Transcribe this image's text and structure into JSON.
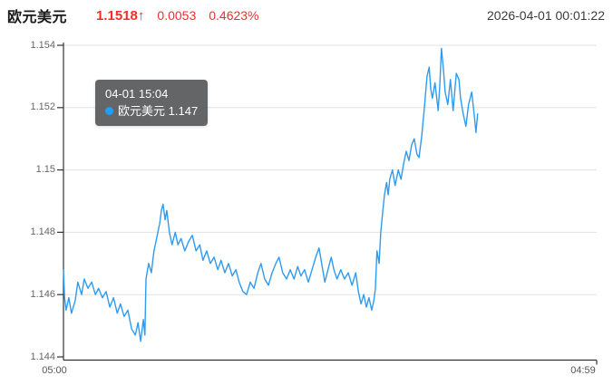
{
  "header": {
    "title": "欧元美元",
    "price": "1.1518",
    "arrow": "↑",
    "change": "0.0053",
    "change_pct": "0.4623%",
    "timestamp": "2026-04-01 00:01:22",
    "up_color": "#f42c2c"
  },
  "tooltip": {
    "time": "04-01 15:04",
    "series": "欧元美元",
    "value": "1.147",
    "dot_color": "#1e9fff"
  },
  "chart_data": {
    "type": "line",
    "title": "欧元美元 intraday price",
    "series_name": "欧元美元",
    "line_color": "#2f9bf0",
    "grid": true,
    "grid_color": "#e2e2e2",
    "axis_color": "#333333",
    "ylim": [
      1.144,
      1.154
    ],
    "y_ticks": [
      "1.154",
      "1.152",
      "1.15",
      "1.148",
      "1.146",
      "1.144"
    ],
    "x_ticks": [
      "05:00",
      "04:59"
    ],
    "xlabel": "",
    "ylabel": "",
    "points": [
      [
        0.0,
        1.1468
      ],
      [
        0.002,
        1.1459
      ],
      [
        0.005,
        1.1455
      ],
      [
        0.01,
        1.1459
      ],
      [
        0.015,
        1.1454
      ],
      [
        0.022,
        1.1458
      ],
      [
        0.027,
        1.1464
      ],
      [
        0.034,
        1.146
      ],
      [
        0.039,
        1.1465
      ],
      [
        0.046,
        1.1462
      ],
      [
        0.053,
        1.1464
      ],
      [
        0.06,
        1.146
      ],
      [
        0.066,
        1.1462
      ],
      [
        0.073,
        1.1459
      ],
      [
        0.08,
        1.1461
      ],
      [
        0.087,
        1.1456
      ],
      [
        0.094,
        1.1459
      ],
      [
        0.101,
        1.1454
      ],
      [
        0.107,
        1.1457
      ],
      [
        0.114,
        1.1453
      ],
      [
        0.121,
        1.1455
      ],
      [
        0.128,
        1.1449
      ],
      [
        0.135,
        1.1447
      ],
      [
        0.14,
        1.1451
      ],
      [
        0.145,
        1.1445
      ],
      [
        0.15,
        1.1452
      ],
      [
        0.153,
        1.1447
      ],
      [
        0.155,
        1.1465
      ],
      [
        0.16,
        1.147
      ],
      [
        0.165,
        1.1467
      ],
      [
        0.17,
        1.1474
      ],
      [
        0.175,
        1.1478
      ],
      [
        0.181,
        1.1483
      ],
      [
        0.184,
        1.1487
      ],
      [
        0.187,
        1.1489
      ],
      [
        0.191,
        1.1484
      ],
      [
        0.194,
        1.1487
      ],
      [
        0.199,
        1.148
      ],
      [
        0.204,
        1.1476
      ],
      [
        0.21,
        1.148
      ],
      [
        0.215,
        1.1476
      ],
      [
        0.221,
        1.1478
      ],
      [
        0.228,
        1.1474
      ],
      [
        0.235,
        1.1477
      ],
      [
        0.242,
        1.1479
      ],
      [
        0.249,
        1.1474
      ],
      [
        0.256,
        1.1476
      ],
      [
        0.262,
        1.1471
      ],
      [
        0.269,
        1.1474
      ],
      [
        0.276,
        1.147
      ],
      [
        0.283,
        1.1472
      ],
      [
        0.29,
        1.1468
      ],
      [
        0.296,
        1.1471
      ],
      [
        0.303,
        1.1467
      ],
      [
        0.31,
        1.147
      ],
      [
        0.317,
        1.1466
      ],
      [
        0.324,
        1.1468
      ],
      [
        0.33,
        1.1464
      ],
      [
        0.337,
        1.1461
      ],
      [
        0.344,
        1.146
      ],
      [
        0.351,
        1.1464
      ],
      [
        0.358,
        1.1462
      ],
      [
        0.365,
        1.1467
      ],
      [
        0.371,
        1.147
      ],
      [
        0.378,
        1.1465
      ],
      [
        0.385,
        1.1463
      ],
      [
        0.392,
        1.1467
      ],
      [
        0.399,
        1.147
      ],
      [
        0.405,
        1.1472
      ],
      [
        0.412,
        1.1467
      ],
      [
        0.419,
        1.1465
      ],
      [
        0.426,
        1.1468
      ],
      [
        0.433,
        1.1465
      ],
      [
        0.44,
        1.1469
      ],
      [
        0.446,
        1.1466
      ],
      [
        0.453,
        1.1468
      ],
      [
        0.46,
        1.1464
      ],
      [
        0.467,
        1.1468
      ],
      [
        0.474,
        1.1472
      ],
      [
        0.48,
        1.1475
      ],
      [
        0.486,
        1.1469
      ],
      [
        0.491,
        1.1464
      ],
      [
        0.497,
        1.1468
      ],
      [
        0.503,
        1.1472
      ],
      [
        0.508,
        1.1468
      ],
      [
        0.514,
        1.1465
      ],
      [
        0.521,
        1.1468
      ],
      [
        0.528,
        1.1465
      ],
      [
        0.535,
        1.1467
      ],
      [
        0.542,
        1.1463
      ],
      [
        0.549,
        1.1467
      ],
      [
        0.554,
        1.1461
      ],
      [
        0.559,
        1.1457
      ],
      [
        0.564,
        1.146
      ],
      [
        0.569,
        1.1456
      ],
      [
        0.574,
        1.1459
      ],
      [
        0.579,
        1.1455
      ],
      [
        0.583,
        1.1458
      ],
      [
        0.586,
        1.1462
      ],
      [
        0.589,
        1.1474
      ],
      [
        0.593,
        1.147
      ],
      [
        0.596,
        1.148
      ],
      [
        0.6,
        1.1487
      ],
      [
        0.603,
        1.1492
      ],
      [
        0.607,
        1.1496
      ],
      [
        0.61,
        1.1492
      ],
      [
        0.613,
        1.1497
      ],
      [
        0.618,
        1.15
      ],
      [
        0.623,
        1.1495
      ],
      [
        0.629,
        1.15
      ],
      [
        0.634,
        1.1497
      ],
      [
        0.639,
        1.1502
      ],
      [
        0.644,
        1.1506
      ],
      [
        0.649,
        1.1503
      ],
      [
        0.654,
        1.1508
      ],
      [
        0.659,
        1.151
      ],
      [
        0.664,
        1.1505
      ],
      [
        0.668,
        1.1504
      ],
      [
        0.673,
        1.1511
      ],
      [
        0.678,
        1.152
      ],
      [
        0.683,
        1.153
      ],
      [
        0.687,
        1.1533
      ],
      [
        0.69,
        1.1526
      ],
      [
        0.693,
        1.1523
      ],
      [
        0.698,
        1.1528
      ],
      [
        0.704,
        1.1519
      ],
      [
        0.707,
        1.1527
      ],
      [
        0.71,
        1.1539
      ],
      [
        0.714,
        1.1532
      ],
      [
        0.717,
        1.1525
      ],
      [
        0.722,
        1.1521
      ],
      [
        0.727,
        1.1529
      ],
      [
        0.732,
        1.1519
      ],
      [
        0.738,
        1.1531
      ],
      [
        0.743,
        1.1529
      ],
      [
        0.746,
        1.1523
      ],
      [
        0.751,
        1.1518
      ],
      [
        0.756,
        1.1514
      ],
      [
        0.761,
        1.1521
      ],
      [
        0.767,
        1.1525
      ],
      [
        0.772,
        1.1517
      ],
      [
        0.775,
        1.1512
      ],
      [
        0.778,
        1.1518
      ]
    ]
  }
}
